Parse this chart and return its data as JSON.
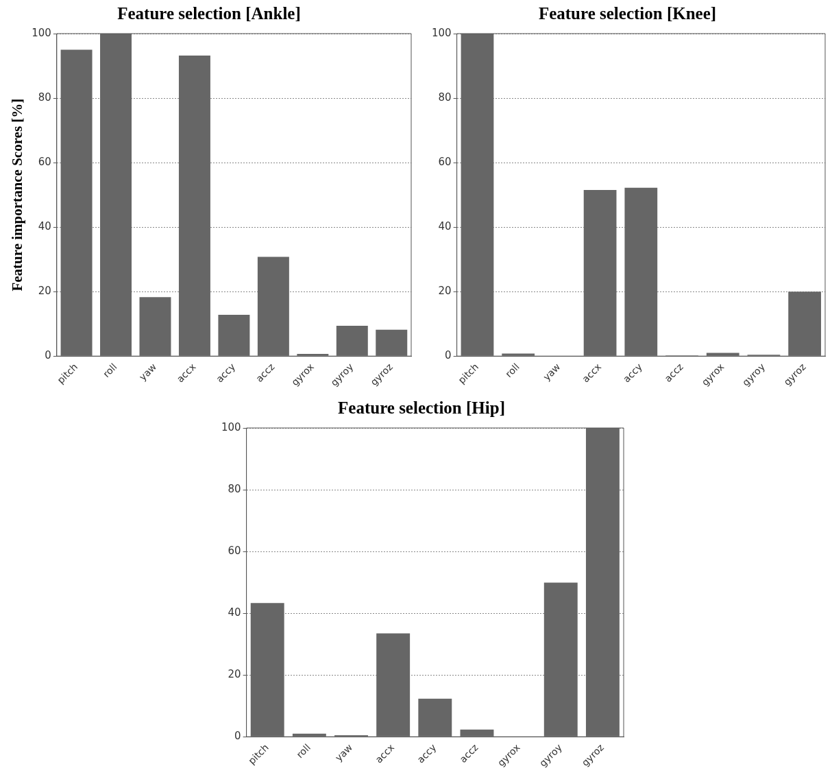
{
  "chart_data": [
    {
      "type": "bar",
      "title": "Feature selection [Ankle]",
      "ylabel": "Feature importance Scores [%]",
      "categories": [
        "pitch",
        "roll",
        "yaw",
        "accx",
        "accy",
        "accz",
        "gyrox",
        "gyroy",
        "gyroz"
      ],
      "values": [
        95,
        100,
        18.3,
        93.2,
        12.8,
        30.8,
        0.7,
        9.4,
        8.2
      ],
      "color": "#666666",
      "ylim": [
        0,
        100
      ],
      "yticks": [
        0,
        20,
        40,
        60,
        80,
        100
      ],
      "grid": "y",
      "legend": false
    },
    {
      "type": "bar",
      "title": "Feature selection [Knee]",
      "categories": [
        "pitch",
        "roll",
        "yaw",
        "accx",
        "accy",
        "accz",
        "gyrox",
        "gyroy",
        "gyroz"
      ],
      "values": [
        100,
        0.8,
        0.1,
        51.5,
        52.2,
        0.2,
        1,
        0.4,
        20
      ],
      "color": "#666666",
      "ylim": [
        0,
        100
      ],
      "yticks": [
        0,
        20,
        40,
        60,
        80,
        100
      ],
      "grid": "y",
      "legend": false
    },
    {
      "type": "bar",
      "title": "Feature selection [Hip]",
      "categories": [
        "pitch",
        "roll",
        "yaw",
        "accx",
        "accy",
        "accz",
        "gyrox",
        "gyroy",
        "gyroz"
      ],
      "values": [
        43.3,
        1,
        0.5,
        33.5,
        12.3,
        2.3,
        0,
        49.9,
        100
      ],
      "color": "#666666",
      "ylim": [
        0,
        100
      ],
      "yticks": [
        0,
        20,
        40,
        60,
        80,
        100
      ],
      "grid": "y",
      "legend": false
    }
  ]
}
